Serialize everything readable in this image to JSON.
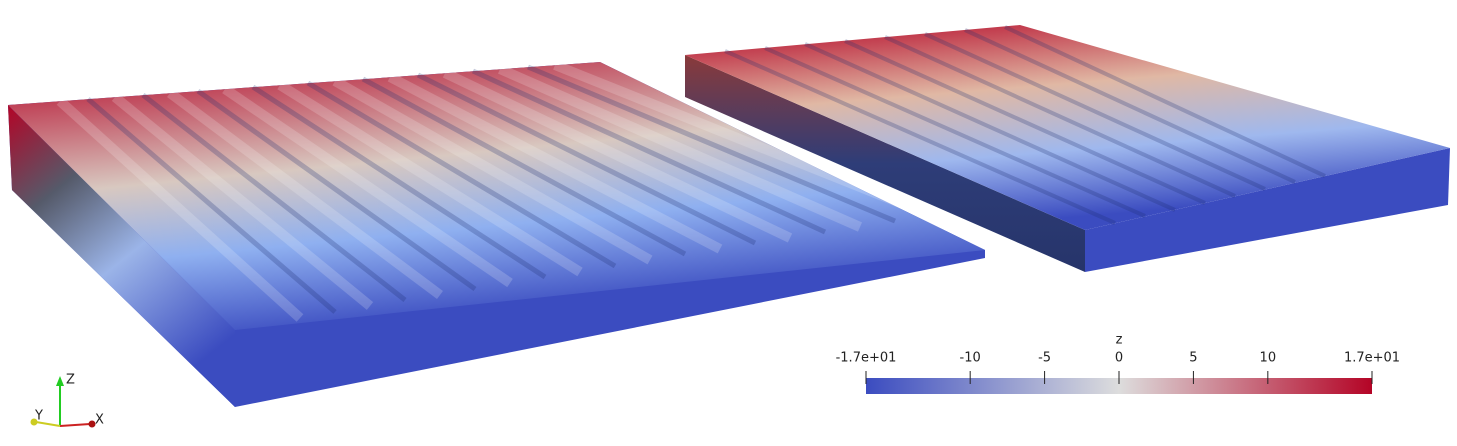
{
  "colorbar": {
    "title": "z",
    "range": [
      -17,
      17
    ],
    "ticks": [
      {
        "value": -17,
        "label": "-1.7e+01"
      },
      -10,
      -5,
      0,
      5,
      10,
      {
        "value": 17,
        "label": "1.7e+01"
      }
    ],
    "colors": [
      "#3b4cc0",
      "#dddddd",
      "#b40426"
    ]
  },
  "axes_triad": {
    "labels": [
      "Z",
      "Y",
      "X"
    ]
  }
}
